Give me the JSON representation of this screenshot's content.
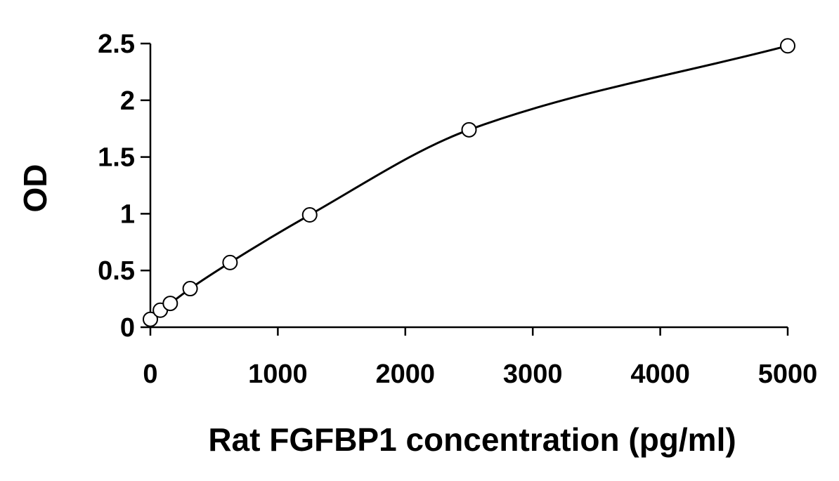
{
  "chart_data": {
    "type": "scatter",
    "title": "",
    "xlabel": "Rat FGFBP1 concentration (pg/ml)",
    "ylabel": "OD",
    "xlim": [
      0,
      5000
    ],
    "ylim": [
      0,
      2.5
    ],
    "xticks": [
      "0",
      "1000",
      "2000",
      "3000",
      "4000",
      "5000"
    ],
    "yticks": [
      "0",
      "0.5",
      "1",
      "1.5",
      "2",
      "2.5"
    ],
    "grid": false,
    "legend": "none",
    "series": [
      {
        "x": [
          0,
          78,
          156,
          312,
          625,
          1250,
          2500,
          5000
        ],
        "y": [
          0.07,
          0.15,
          0.21,
          0.34,
          0.57,
          0.99,
          1.74,
          2.48
        ],
        "marker": "open-circle",
        "fit": "smooth-curve"
      }
    ],
    "colors": {
      "line": "#000000",
      "marker_fill": "#ffffff",
      "marker_stroke": "#000000"
    }
  }
}
